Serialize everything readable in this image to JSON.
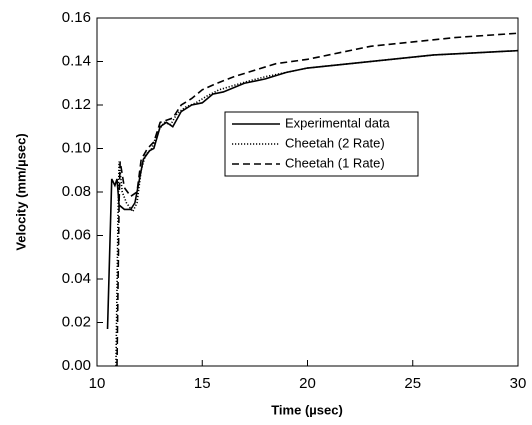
{
  "chart_data": {
    "type": "line",
    "xlabel": "Time (µsec)",
    "ylabel": "Velocity (mm/µsec)",
    "xlim": [
      10,
      30
    ],
    "xticks": [
      10,
      15,
      20,
      25,
      30
    ],
    "ylim": [
      0,
      0.16
    ],
    "yticks": [
      {
        "value": 0,
        "label": "0.00"
      },
      {
        "value": 0.02,
        "label": "0.02"
      },
      {
        "value": 0.04,
        "label": "0.04"
      },
      {
        "value": 0.06,
        "label": "0.06"
      },
      {
        "value": 0.08,
        "label": "0.08"
      },
      {
        "value": 0.1,
        "label": "0.10"
      },
      {
        "value": 0.12,
        "label": "0.12"
      },
      {
        "value": 0.14,
        "label": "0.14"
      },
      {
        "value": 0.16,
        "label": "0.16"
      }
    ],
    "grid": false,
    "legend": "center",
    "series": [
      {
        "name": "Experimental data",
        "color": "#000000",
        "dash": "solid",
        "x": [
          10.5,
          10.7,
          10.85,
          10.95,
          11.05,
          11.3,
          11.6,
          11.8,
          12.0,
          12.2,
          12.5,
          12.7,
          13.0,
          13.3,
          13.6,
          14,
          14.5,
          15,
          15.5,
          16,
          16.5,
          17,
          18,
          19,
          20,
          22,
          24,
          26,
          28,
          30
        ],
        "values": [
          0.017,
          0.086,
          0.083,
          0.086,
          0.074,
          0.072,
          0.072,
          0.075,
          0.085,
          0.095,
          0.099,
          0.1,
          0.11,
          0.112,
          0.11,
          0.117,
          0.12,
          0.121,
          0.125,
          0.126,
          0.128,
          0.13,
          0.132,
          0.135,
          0.137,
          0.139,
          0.141,
          0.143,
          0.144,
          0.145
        ]
      },
      {
        "name": "Cheetah (2 Rate)",
        "color": "#000000",
        "dash": "dotted",
        "x": [
          10.9,
          11.0,
          11.05,
          11.2,
          11.4,
          11.7,
          11.9,
          12.1,
          12.3,
          12.6,
          12.9,
          13.2,
          13.5,
          13.8,
          14.2,
          14.7,
          15.2,
          15.8,
          16.5,
          17.2,
          18,
          19,
          20,
          22,
          24,
          26,
          28,
          30
        ],
        "values": [
          0.0,
          0.07,
          0.094,
          0.08,
          0.075,
          0.071,
          0.075,
          0.09,
          0.097,
          0.1,
          0.108,
          0.112,
          0.111,
          0.116,
          0.119,
          0.121,
          0.124,
          0.127,
          0.129,
          0.131,
          0.133,
          0.135,
          0.137,
          0.139,
          0.141,
          0.143,
          0.144,
          0.145
        ]
      },
      {
        "name": "Cheetah (1 Rate)",
        "color": "#000000",
        "dash": "dashed",
        "x": [
          10.95,
          11.05,
          11.1,
          11.3,
          11.6,
          11.9,
          12.1,
          12.4,
          12.7,
          13.0,
          13.3,
          13.6,
          14,
          14.5,
          15,
          15.7,
          16.5,
          17.5,
          18.5,
          20,
          21.5,
          23,
          25,
          27,
          28.5,
          30
        ],
        "values": [
          0.0,
          0.075,
          0.094,
          0.082,
          0.078,
          0.08,
          0.095,
          0.1,
          0.103,
          0.112,
          0.113,
          0.114,
          0.12,
          0.123,
          0.127,
          0.13,
          0.133,
          0.136,
          0.139,
          0.141,
          0.144,
          0.147,
          0.149,
          0.151,
          0.152,
          0.153
        ]
      }
    ]
  }
}
